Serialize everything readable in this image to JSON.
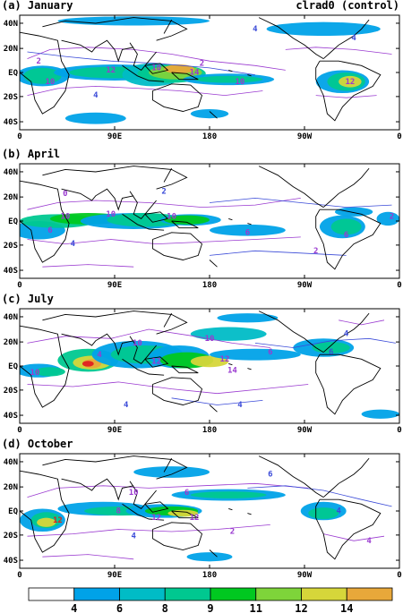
{
  "figure": {
    "run_label": "clrad0 (control)",
    "panels": [
      {
        "title": "(a) January"
      },
      {
        "title": "(b) April"
      },
      {
        "title": "(c) July"
      },
      {
        "title": "(d) October"
      }
    ],
    "lat_labels": [
      "40N",
      "20N",
      "EQ",
      "20S",
      "40S"
    ],
    "lon_labels": [
      "0",
      "90E",
      "180",
      "90W",
      "0"
    ],
    "colorbar": {
      "ticks": [
        "4",
        "6",
        "8",
        "9",
        "11",
        "12",
        "14"
      ],
      "colors": [
        "#ffffff",
        "#00a2e8",
        "#00bcc6",
        "#00c890",
        "#00c820",
        "#7ed43a",
        "#d6d63a",
        "#e8a83a"
      ]
    },
    "line_colors": {
      "purple": "#9a3ad0",
      "blue": "#3a4ad8",
      "red": "#e02020"
    }
  }
}
